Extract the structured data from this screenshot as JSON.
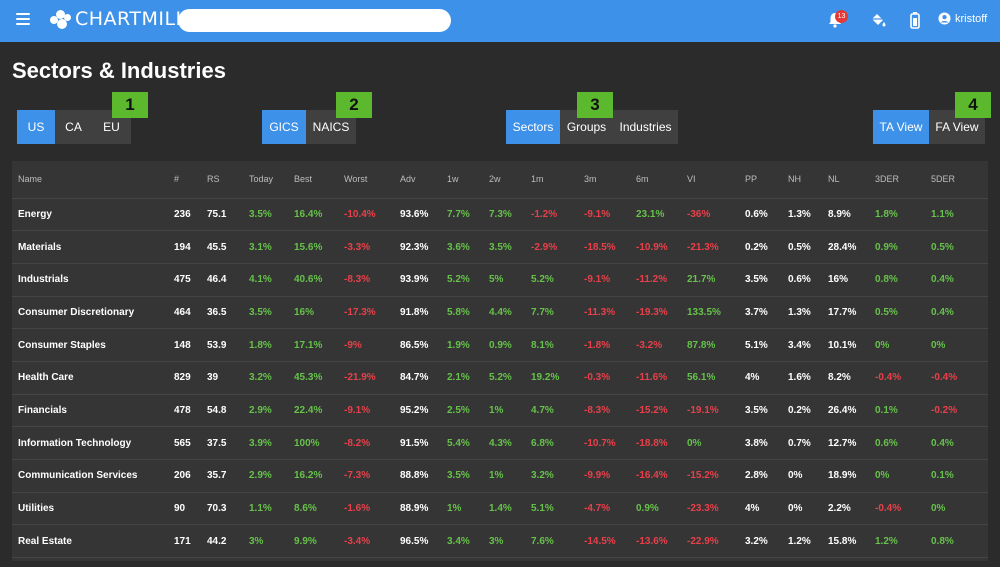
{
  "topbar": {
    "logo_text": "CHARTMILL",
    "search_placeholder": "",
    "notification_count": "13",
    "username": "kristoff",
    "icons": [
      "menu-icon",
      "bell-icon",
      "paint-bucket-icon",
      "battery-icon",
      "user-icon"
    ]
  },
  "page": {
    "title": "Sectors & Industries"
  },
  "groups": {
    "region": {
      "buttons": [
        "US",
        "CA",
        "EU"
      ],
      "active": "US",
      "marker": "1"
    },
    "classification": {
      "buttons": [
        "GICS",
        "NAICS"
      ],
      "active": "GICS",
      "marker": "2"
    },
    "level": {
      "buttons": [
        "Sectors",
        "Groups",
        "Industries"
      ],
      "active": "Sectors",
      "marker": "3"
    },
    "view": {
      "buttons": [
        "TA View",
        "FA View"
      ],
      "active": "TA View",
      "marker": "4"
    }
  },
  "colors": {
    "topbar": "#3e91e8",
    "active_button": "#3e91e8",
    "positive": "#66c24a",
    "negative": "#e8404a",
    "marker": "#5cb82c"
  },
  "table": {
    "columns": [
      "Name",
      "#",
      "RS",
      "Today",
      "Best",
      "Worst",
      "Adv",
      "1w",
      "2w",
      "1m",
      "3m",
      "6m",
      "VI",
      "PP",
      "NH",
      "NL",
      "3DER",
      "5DER"
    ],
    "rows": [
      [
        "Energy",
        "236",
        "75.1",
        "3.5%",
        "16.4%",
        "-10.4%",
        "93.6%",
        "7.7%",
        "7.3%",
        "-1.2%",
        "-9.1%",
        "23.1%",
        "-36%",
        "0.6%",
        "1.3%",
        "8.9%",
        "1.8%",
        "1.1%"
      ],
      [
        "Materials",
        "194",
        "45.5",
        "3.1%",
        "15.6%",
        "-3.3%",
        "92.3%",
        "3.6%",
        "3.5%",
        "-2.9%",
        "-18.5%",
        "-10.9%",
        "-21.3%",
        "0.2%",
        "0.5%",
        "28.4%",
        "0.9%",
        "0.5%"
      ],
      [
        "Industrials",
        "475",
        "46.4",
        "4.1%",
        "40.6%",
        "-8.3%",
        "93.9%",
        "5.2%",
        "5%",
        "5.2%",
        "-9.1%",
        "-11.2%",
        "21.7%",
        "3.5%",
        "0.6%",
        "16%",
        "0.8%",
        "0.4%"
      ],
      [
        "Consumer Discretionary",
        "464",
        "36.5",
        "3.5%",
        "16%",
        "-17.3%",
        "91.8%",
        "5.8%",
        "4.4%",
        "7.7%",
        "-11.3%",
        "-19.3%",
        "133.5%",
        "3.7%",
        "1.3%",
        "17.7%",
        "0.5%",
        "0.4%"
      ],
      [
        "Consumer Staples",
        "148",
        "53.9",
        "1.8%",
        "17.1%",
        "-9%",
        "86.5%",
        "1.9%",
        "0.9%",
        "8.1%",
        "-1.8%",
        "-3.2%",
        "87.8%",
        "5.1%",
        "3.4%",
        "10.1%",
        "0%",
        "0%"
      ],
      [
        "Health Care",
        "829",
        "39",
        "3.2%",
        "45.3%",
        "-21.9%",
        "84.7%",
        "2.1%",
        "5.2%",
        "19.2%",
        "-0.3%",
        "-11.6%",
        "56.1%",
        "4%",
        "1.6%",
        "8.2%",
        "-0.4%",
        "-0.4%"
      ],
      [
        "Financials",
        "478",
        "54.8",
        "2.9%",
        "22.4%",
        "-9.1%",
        "95.2%",
        "2.5%",
        "1%",
        "4.7%",
        "-8.3%",
        "-15.2%",
        "-19.1%",
        "3.5%",
        "0.2%",
        "26.4%",
        "0.1%",
        "-0.2%"
      ],
      [
        "Information Technology",
        "565",
        "37.5",
        "3.9%",
        "100%",
        "-8.2%",
        "91.5%",
        "5.4%",
        "4.3%",
        "6.8%",
        "-10.7%",
        "-18.8%",
        "0%",
        "3.8%",
        "0.7%",
        "12.7%",
        "0.6%",
        "0.4%"
      ],
      [
        "Communication Services",
        "206",
        "35.7",
        "2.9%",
        "16.2%",
        "-7.3%",
        "88.8%",
        "3.5%",
        "1%",
        "3.2%",
        "-9.9%",
        "-16.4%",
        "-15.2%",
        "2.8%",
        "0%",
        "18.9%",
        "0%",
        "0.1%"
      ],
      [
        "Utilities",
        "90",
        "70.3",
        "1.1%",
        "8.6%",
        "-1.6%",
        "88.9%",
        "1%",
        "1.4%",
        "5.1%",
        "-4.7%",
        "0.9%",
        "-23.3%",
        "4%",
        "0%",
        "2.2%",
        "-0.4%",
        "0%"
      ],
      [
        "Real Estate",
        "171",
        "44.2",
        "3%",
        "9.9%",
        "-3.4%",
        "96.5%",
        "3.4%",
        "3%",
        "7.6%",
        "-14.5%",
        "-13.6%",
        "-22.9%",
        "3.2%",
        "1.2%",
        "15.8%",
        "1.2%",
        "0.8%"
      ]
    ],
    "colored_columns": [
      3,
      4,
      5,
      7,
      8,
      9,
      10,
      11,
      12,
      16,
      17
    ]
  }
}
